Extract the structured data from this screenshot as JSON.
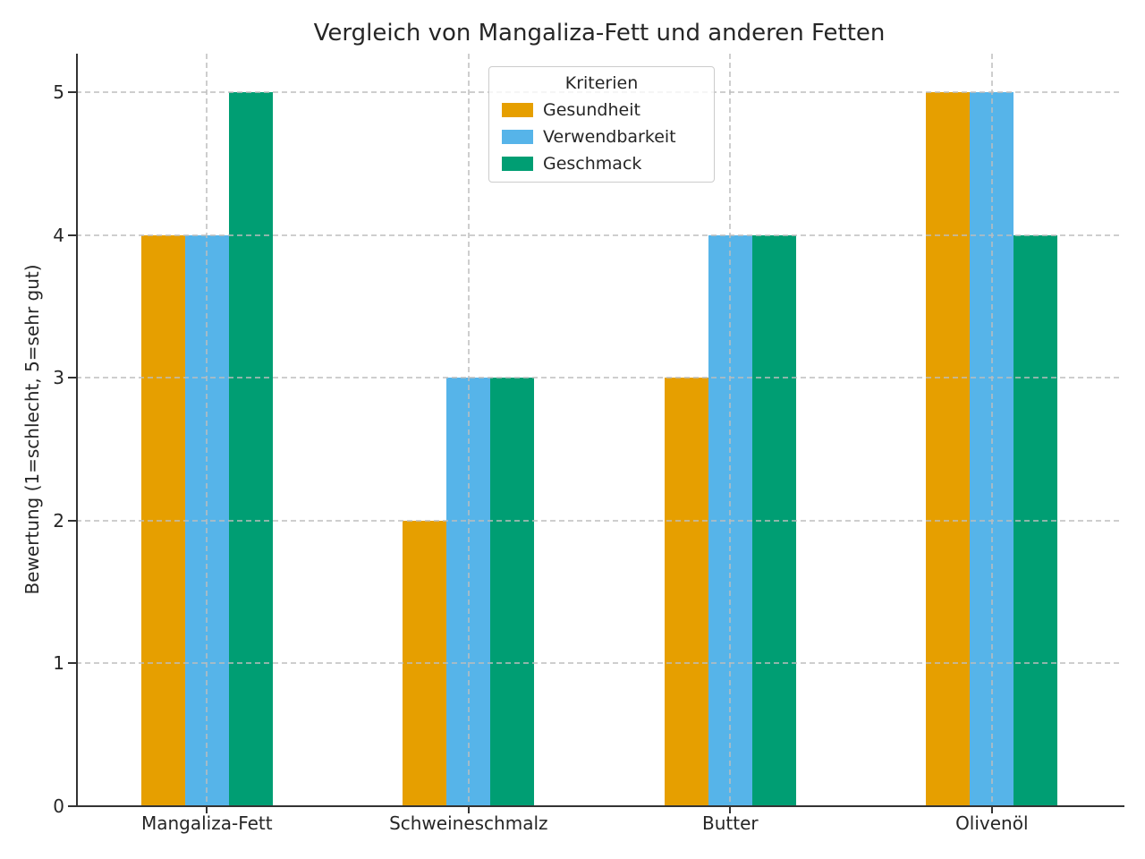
{
  "chart_data": {
    "type": "bar",
    "title": "Vergleich von Mangaliza-Fett und anderen Fetten",
    "xlabel": "",
    "ylabel": "Bewertung (1=schlecht, 5=sehr gut)",
    "categories": [
      "Mangaliza-Fett",
      "Schweineschmalz",
      "Butter",
      "Olivenöl"
    ],
    "legend": {
      "title": "Kriterien",
      "position": "upper center"
    },
    "series": [
      {
        "name": "Gesundheit",
        "color": "#E69F00",
        "values": [
          4,
          2,
          3,
          5
        ]
      },
      {
        "name": "Verwendbarkeit",
        "color": "#56B4E9",
        "values": [
          4,
          3,
          4,
          5
        ]
      },
      {
        "name": "Geschmack",
        "color": "#009E73",
        "values": [
          5,
          3,
          4,
          4
        ]
      }
    ],
    "yticks": [
      0,
      1,
      2,
      3,
      4,
      5
    ],
    "ylim": [
      0,
      5.27
    ],
    "grid": {
      "horizontal": true,
      "vertical": true,
      "style": "dashed"
    },
    "style": {
      "axis_color": "#333333",
      "text_color": "#262626",
      "grid_color": "#bdbdbd",
      "background": "#ffffff"
    }
  }
}
